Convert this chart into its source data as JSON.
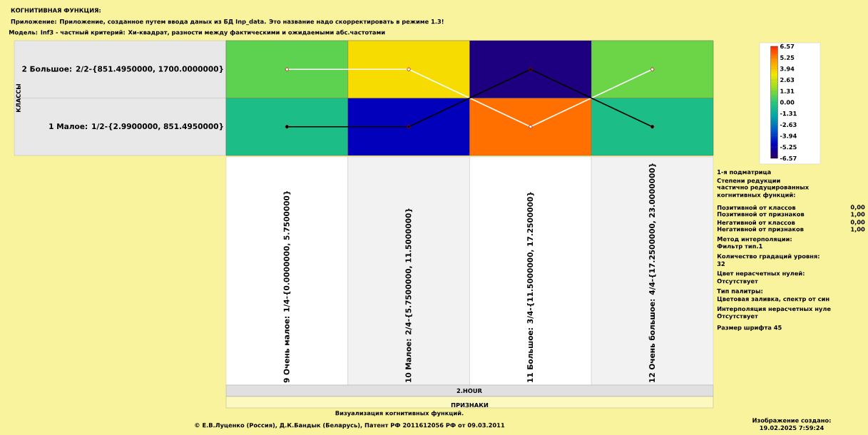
{
  "chart_data": {
    "type": "heatmap",
    "title": "КОГНИТИВНАЯ ФУНКЦИЯ:",
    "subtitle": "Приложение: Приложение, созданное путем ввода даных из БД Inp_data. Это название надо скорректировать в режиме 1.3!",
    "xlabel": "ПРИЗНАКИ",
    "ylabel": "КЛАССЫ",
    "categories": [
      "9 Очень малое: 1/4-{0.0000000, 5.7500000}",
      "10 Малое: 2/4-{5.7500000, 11.5000000}",
      "11 Большое: 3/4-{11.5000000, 17.2500000}",
      "12 Очень большое: 4/4-{17.2500000, 23.0000000}"
    ],
    "y_categories": [
      "2 Большое: 2/2-{851.4950000, 1700.0000000}",
      "1 Малое: 1/2-{2.9900000, 851.4950000}"
    ],
    "cells": [
      [
        0.8,
        3.5,
        -6.0,
        1.0
      ],
      [
        -0.5,
        -5.0,
        5.5,
        -0.5
      ]
    ],
    "clim": [
      -6.57,
      6.57
    ],
    "cticks": [
      {
        "value": 6.57,
        "label": "6.57"
      },
      {
        "value": 5.25,
        "label": "5.25"
      },
      {
        "value": 3.94,
        "label": "3.94"
      },
      {
        "value": 2.63,
        "label": "2.63"
      },
      {
        "value": 1.31,
        "label": "1.31"
      },
      {
        "value": 0,
        "label": "0.00"
      },
      {
        "value": -1.31,
        "label": "-1.31"
      },
      {
        "value": -2.63,
        "label": "-2.63"
      },
      {
        "value": -3.94,
        "label": "-3.94"
      },
      {
        "value": -5.25,
        "label": "-5.25"
      },
      {
        "value": -6.57,
        "label": "-6.57"
      }
    ],
    "series": [
      {
        "type": "line",
        "color": "#ffffff",
        "values": [
          0,
          0,
          1,
          0
        ]
      },
      {
        "type": "line",
        "color": "#000000",
        "values": [
          1,
          1,
          0,
          1
        ]
      }
    ],
    "marker": "circle",
    "annotations": [
      "Модель: Inf3 - частный критерий: Хи-квадрат, разности между фактическими и ожидаемыми абс.частотами",
      "2.HOUR",
      "1-я подматрица",
      "Степени редукции",
      "частично редуцированных",
      "когнитивных функций:",
      "Позитивной от классов",
      "0,00",
      "Позитивной от признаков",
      "1,00",
      "Негативной от классов",
      "0,00",
      "Негативной от признаков",
      "1,00",
      "Метод интерполяции:",
      "Фильтр тип.1",
      "Количество градаций уровня:",
      "32",
      "Цвет нерасчетных нулей:",
      "Отсутствует",
      "Тип палитры:",
      "Цветовая заливка, спектр от син",
      "Интерполяция нерасчетных нуле",
      "Отсутствует",
      "Размер шрифта 45",
      "Визуализация когнитивных функций.",
      "© Е.В.Луценко (Россия), Д.К.Бандык (Беларусь), Патент РФ  2011612056 РФ от 09.03.2011",
      "Изображение создано:",
      "19.02.2025  7:59:24"
    ]
  }
}
